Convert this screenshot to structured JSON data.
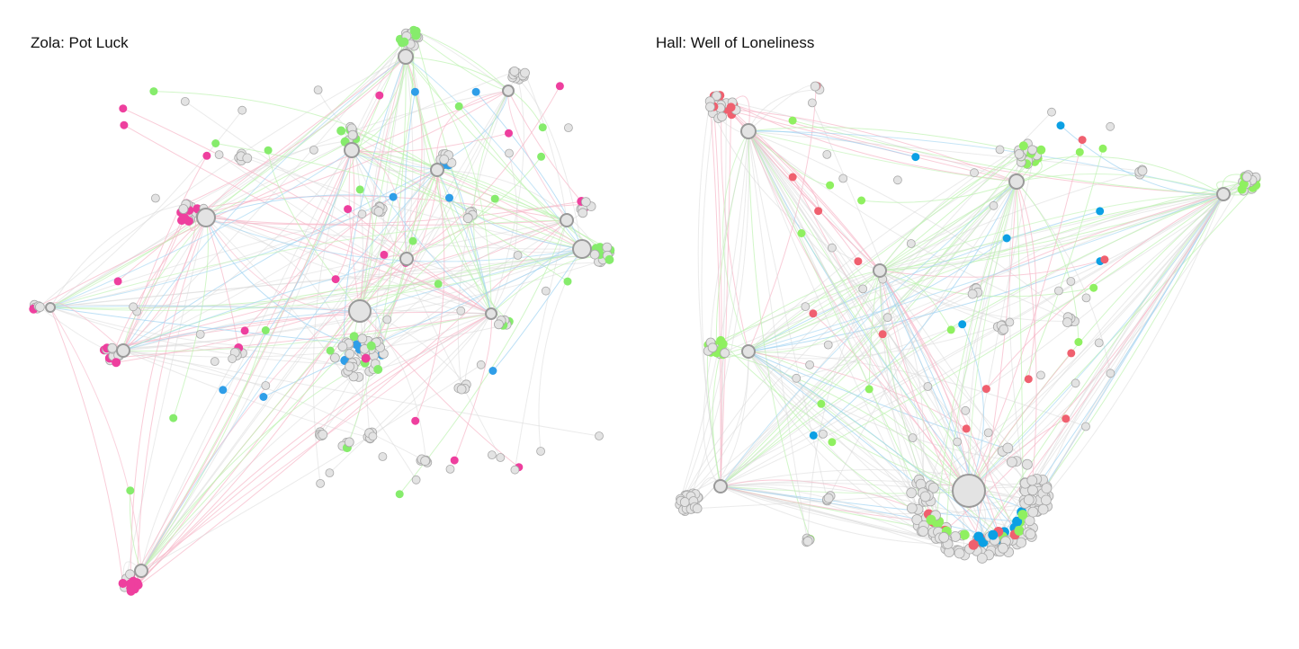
{
  "panels": [
    {
      "title": "Zola: Pot Luck"
    },
    {
      "title": "Hall: Well of Loneliness"
    }
  ]
}
